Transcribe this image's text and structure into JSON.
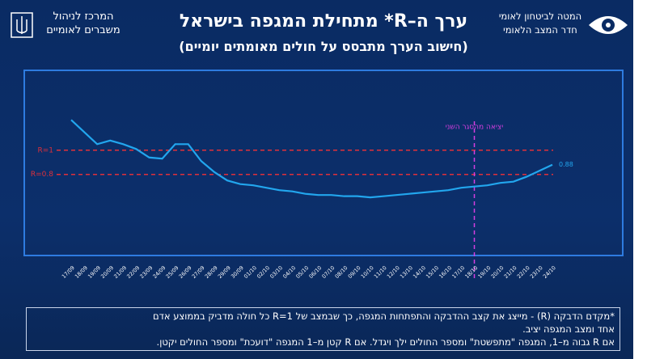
{
  "header": {
    "left_org": [
      "המרכז לניהול",
      "משברים לאומיים"
    ],
    "right_org": [
      "המטה לביטחון לאומי",
      "חדר המצב הלאומי"
    ]
  },
  "chart_data": {
    "type": "line",
    "title": "ערך ה–R* מתחילת המגפה בישראל",
    "subtitle": "(חישוב הערך מתבסס על חולים מאומתים יומיים)",
    "categories": [
      "17/09",
      "18/09",
      "19/09",
      "20/09",
      "21/09",
      "22/09",
      "23/09",
      "24/09",
      "25/09",
      "26/09",
      "27/09",
      "28/09",
      "29/09",
      "30/09",
      "01/10",
      "02/10",
      "03/10",
      "04/10",
      "05/10",
      "06/10",
      "07/10",
      "08/10",
      "09/10",
      "10/10",
      "11/10",
      "12/10",
      "13/10",
      "14/10",
      "15/10",
      "16/10",
      "17/10",
      "18/10",
      "19/10",
      "20/10",
      "21/10",
      "22/10",
      "23/10",
      "24/10"
    ],
    "series": [
      {
        "name": "R",
        "color": "#22a6ee",
        "values": [
          1.25,
          1.15,
          1.05,
          1.08,
          1.05,
          1.01,
          0.94,
          0.93,
          1.05,
          1.05,
          0.91,
          0.82,
          0.75,
          0.72,
          0.71,
          0.69,
          0.67,
          0.66,
          0.64,
          0.63,
          0.63,
          0.62,
          0.62,
          0.61,
          0.62,
          0.63,
          0.64,
          0.65,
          0.66,
          0.67,
          0.69,
          0.7,
          0.71,
          0.73,
          0.74,
          0.78,
          0.83,
          0.88
        ]
      }
    ],
    "ylim": [
      0.13,
      1.66
    ],
    "reference_lines": [
      {
        "value": 1,
        "label": "R=1",
        "color": "#e0303a"
      },
      {
        "value": 0.8,
        "label": "R=0.8",
        "color": "#e0303a"
      }
    ],
    "annotation": {
      "text": "יציאה מהסגר השני",
      "x": "18/10",
      "color": "#d63ee0"
    },
    "last_value_label": true
  },
  "note": {
    "lines": [
      "*מקדם הדבקה (R) - מייצג את קצב ההדבקה והתפתחות המגפה, כך שבמצב של R=1 כל חולה מדביק בממוצע אדם",
      "אחד ומצב המגפה יציב.",
      "אם R גבוה מ–1, המגפה \"מתפשטת\" ומספר החולים ילך ויגדל. אם R קטן מ–1 המגפה \"דועכת\" ומספר החולים יקטן."
    ]
  }
}
